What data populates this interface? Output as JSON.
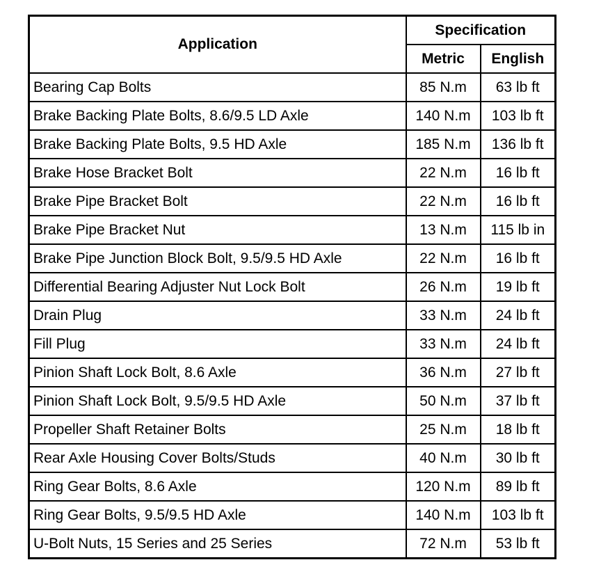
{
  "table": {
    "header": {
      "application": "Application",
      "specification": "Specification",
      "metric": "Metric",
      "english": "English"
    },
    "rows": [
      {
        "application": "Bearing Cap Bolts",
        "metric": "85 N.m",
        "english": "63 lb ft"
      },
      {
        "application": "Brake Backing Plate Bolts, 8.6/9.5 LD Axle",
        "metric": "140 N.m",
        "english": "103 lb ft"
      },
      {
        "application": "Brake Backing Plate Bolts, 9.5 HD Axle",
        "metric": "185 N.m",
        "english": "136 lb ft"
      },
      {
        "application": "Brake Hose Bracket Bolt",
        "metric": "22 N.m",
        "english": "16 lb ft"
      },
      {
        "application": "Brake Pipe Bracket Bolt",
        "metric": "22 N.m",
        "english": "16 lb ft"
      },
      {
        "application": "Brake Pipe Bracket Nut",
        "metric": "13 N.m",
        "english": "115 lb in"
      },
      {
        "application": "Brake Pipe Junction Block Bolt, 9.5/9.5 HD Axle",
        "metric": "22 N.m",
        "english": "16 lb ft"
      },
      {
        "application": "Differential Bearing Adjuster Nut Lock Bolt",
        "metric": "26 N.m",
        "english": "19 lb ft"
      },
      {
        "application": "Drain Plug",
        "metric": "33 N.m",
        "english": "24 lb ft"
      },
      {
        "application": "Fill Plug",
        "metric": "33 N.m",
        "english": "24 lb ft"
      },
      {
        "application": "Pinion Shaft Lock Bolt, 8.6 Axle",
        "metric": "36 N.m",
        "english": "27 lb ft"
      },
      {
        "application": "Pinion Shaft Lock Bolt, 9.5/9.5 HD Axle",
        "metric": "50 N.m",
        "english": "37 lb ft"
      },
      {
        "application": "Propeller Shaft Retainer Bolts",
        "metric": "25 N.m",
        "english": "18 lb ft"
      },
      {
        "application": "Rear Axle Housing Cover Bolts/Studs",
        "metric": "40 N.m",
        "english": "30 lb ft"
      },
      {
        "application": "Ring Gear Bolts, 8.6 Axle",
        "metric": "120 N.m",
        "english": "89 lb ft"
      },
      {
        "application": "Ring Gear Bolts, 9.5/9.5 HD Axle",
        "metric": "140 N.m",
        "english": "103 lb ft"
      },
      {
        "application": "U-Bolt Nuts, 15 Series and 25 Series",
        "metric": "72 N.m",
        "english": "53 lb ft"
      }
    ]
  }
}
